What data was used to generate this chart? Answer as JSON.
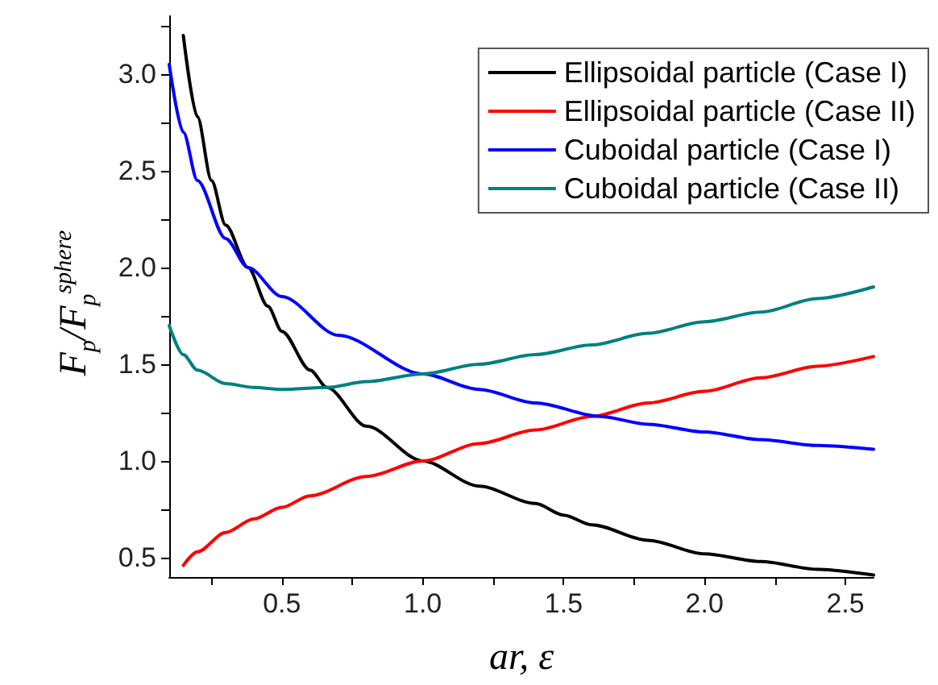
{
  "chart_data": {
    "type": "line",
    "xlabel": "ar, ε",
    "ylabel": "F$_{p}$/F$_{p}$$^{sphere}$",
    "xlim": [
      0.1,
      2.6
    ],
    "ylim": [
      0.4,
      3.3
    ],
    "xticks": [
      {
        "value": 0.25,
        "label": null
      },
      0.5,
      {
        "value": 0.75,
        "label": null
      },
      {
        "value": 1,
        "label": "1.0"
      },
      {
        "value": 1.25,
        "label": null
      },
      1.5,
      {
        "value": 1.75,
        "label": null
      },
      {
        "value": 2,
        "label": "2.0"
      },
      {
        "value": 2.25,
        "label": null
      },
      2.5
    ],
    "yticks": [
      0.5,
      {
        "value": 0.75,
        "label": null
      },
      {
        "value": 1,
        "label": "1.0"
      },
      {
        "value": 1.25,
        "label": null
      },
      1.5,
      {
        "value": 1.75,
        "label": null
      },
      {
        "value": 2,
        "label": "2.0"
      },
      {
        "value": 2.25,
        "label": null
      },
      2.5,
      {
        "value": 2.75,
        "label": null
      },
      {
        "value": 3,
        "label": "3.0"
      },
      {
        "value": 3.25,
        "label": null
      }
    ],
    "grid": false,
    "legend": "top right",
    "marker": "none",
    "line_style": "solid",
    "series": [
      {
        "name": "Ellipsoidal particle (Case I)",
        "color": "#000000",
        "x": [
          0.15,
          0.2,
          0.25,
          0.3,
          0.38,
          0.45,
          0.5,
          0.6,
          0.66,
          0.8,
          1.0,
          1.2,
          1.4,
          1.5,
          1.6,
          1.8,
          2.0,
          2.2,
          2.4,
          2.6
        ],
        "values": [
          3.2,
          2.78,
          2.45,
          2.22,
          2.0,
          1.8,
          1.67,
          1.47,
          1.38,
          1.18,
          1.0,
          0.87,
          0.78,
          0.72,
          0.67,
          0.59,
          0.52,
          0.48,
          0.44,
          0.41
        ]
      },
      {
        "name": "Ellipsoidal particle (Case II)",
        "color": "#ff0000",
        "x": [
          0.15,
          0.2,
          0.3,
          0.4,
          0.5,
          0.6,
          0.8,
          1.0,
          1.2,
          1.4,
          1.6,
          1.8,
          2.0,
          2.2,
          2.4,
          2.6
        ],
        "values": [
          0.46,
          0.53,
          0.63,
          0.7,
          0.76,
          0.82,
          0.92,
          1.0,
          1.09,
          1.16,
          1.23,
          1.3,
          1.36,
          1.43,
          1.49,
          1.54
        ]
      },
      {
        "name": "Cuboidal particle (Case I)",
        "color": "#0000ff",
        "x": [
          0.1,
          0.15,
          0.2,
          0.3,
          0.38,
          0.5,
          0.7,
          1.0,
          1.2,
          1.4,
          1.63,
          1.8,
          2.0,
          2.2,
          2.4,
          2.6
        ],
        "values": [
          3.05,
          2.7,
          2.45,
          2.15,
          2.0,
          1.85,
          1.65,
          1.45,
          1.37,
          1.3,
          1.23,
          1.19,
          1.15,
          1.11,
          1.08,
          1.06
        ]
      },
      {
        "name": "Cuboidal particle (Case II)",
        "color": "#008080",
        "x": [
          0.1,
          0.15,
          0.2,
          0.3,
          0.4,
          0.5,
          0.66,
          0.8,
          1.0,
          1.2,
          1.4,
          1.6,
          1.8,
          2.0,
          2.2,
          2.4,
          2.6
        ],
        "values": [
          1.7,
          1.55,
          1.47,
          1.4,
          1.38,
          1.37,
          1.38,
          1.41,
          1.45,
          1.5,
          1.55,
          1.6,
          1.66,
          1.72,
          1.77,
          1.84,
          1.9
        ]
      }
    ]
  }
}
